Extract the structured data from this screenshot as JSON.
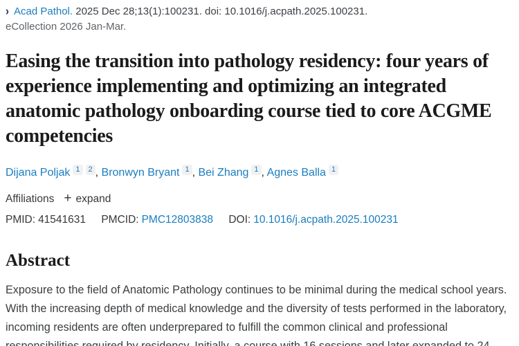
{
  "colors": {
    "link_blue": "#1a7dbe",
    "text_dark": "#212529",
    "text_gray": "#5f6368",
    "badge_bg": "#f1f1f2"
  },
  "citation": {
    "chevron": "›",
    "journal": "Acad Pathol.",
    "details": "2025 Dec 28;13(1):100231. doi: 10.1016/j.acpath.2025.100231.",
    "ecollection": "eCollection 2026 Jan-Mar."
  },
  "title": "Easing the transition into pathology residency: four years of experience implementing and optimizing an integrated anatomic pathology onboarding course tied to core ACGME competencies",
  "authors": [
    {
      "name": "Dijana Poljak",
      "affils": [
        "1",
        "2"
      ]
    },
    {
      "name": "Bronwyn Bryant",
      "affils": [
        "1"
      ]
    },
    {
      "name": "Bei Zhang",
      "affils": [
        "1"
      ]
    },
    {
      "name": "Agnes Balla",
      "affils": [
        "1"
      ]
    }
  ],
  "affiliations": {
    "label": "Affiliations",
    "plus": "+",
    "expand_label": "expand"
  },
  "identifiers": {
    "pmid_label": "PMID:",
    "pmid": "41541631",
    "pmcid_label": "PMCID:",
    "pmcid": "PMC12803838",
    "doi_label": "DOI:",
    "doi": "10.1016/j.acpath.2025.100231"
  },
  "abstract": {
    "heading": "Abstract",
    "text": "Exposure to the field of Anatomic Pathology continues to be minimal during the medical school years. With the increasing depth of medical knowledge and the diversity of tests performed in the laboratory, incoming residents are often underprepared to fulfill the common clinical and professional responsibilities required by residency. Initially, a course with 16 sessions and later expanded to 24"
  }
}
